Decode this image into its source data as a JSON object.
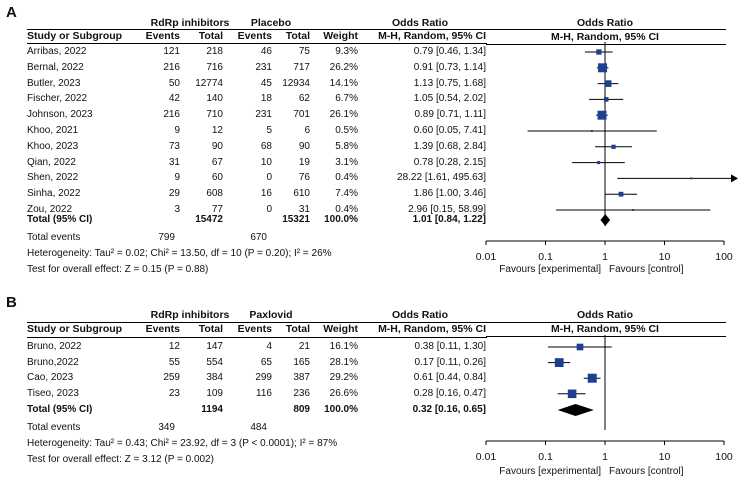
{
  "chart_data": [
    {
      "type": "forest",
      "panel": "A",
      "group1_label": "RdRp inhibitors",
      "group2_label": "Placebo",
      "headers": {
        "study": "Study or Subgroup",
        "events1": "Events",
        "total1": "Total",
        "events2": "Events",
        "total2": "Total",
        "weight": "Weight",
        "or_title": "Odds Ratio",
        "or_method": "M-H, Random, 95% CI",
        "plot_title": "Odds Ratio",
        "plot_method": "M-H, Random, 95% CI"
      },
      "studies": [
        {
          "name": "Arribas, 2022",
          "e1": "121",
          "t1": "218",
          "e2": "46",
          "t2": "75",
          "weight": "9.3%",
          "or_text": "0.79 [0.46, 1.34]",
          "or": 0.79,
          "lo": 0.46,
          "hi": 1.34
        },
        {
          "name": "Bernal, 2022",
          "e1": "216",
          "t1": "716",
          "e2": "231",
          "t2": "717",
          "weight": "26.2%",
          "or_text": "0.91 [0.73, 1.14]",
          "or": 0.91,
          "lo": 0.73,
          "hi": 1.14
        },
        {
          "name": "Butler, 2023",
          "e1": "50",
          "t1": "12774",
          "e2": "45",
          "t2": "12934",
          "weight": "14.1%",
          "or_text": "1.13 [0.75, 1.68]",
          "or": 1.13,
          "lo": 0.75,
          "hi": 1.68
        },
        {
          "name": "Fischer, 2022",
          "e1": "42",
          "t1": "140",
          "e2": "18",
          "t2": "62",
          "weight": "6.7%",
          "or_text": "1.05 [0.54, 2.02]",
          "or": 1.05,
          "lo": 0.54,
          "hi": 2.02
        },
        {
          "name": "Johnson, 2023",
          "e1": "216",
          "t1": "710",
          "e2": "231",
          "t2": "701",
          "weight": "26.1%",
          "or_text": "0.89 [0.71, 1.11]",
          "or": 0.89,
          "lo": 0.71,
          "hi": 1.11
        },
        {
          "name": "Khoo, 2021",
          "e1": "9",
          "t1": "12",
          "e2": "5",
          "t2": "6",
          "weight": "0.5%",
          "or_text": "0.60 [0.05, 7.41]",
          "or": 0.6,
          "lo": 0.05,
          "hi": 7.41
        },
        {
          "name": "Khoo, 2023",
          "e1": "73",
          "t1": "90",
          "e2": "68",
          "t2": "90",
          "weight": "5.8%",
          "or_text": "1.39 [0.68, 2.84]",
          "or": 1.39,
          "lo": 0.68,
          "hi": 2.84
        },
        {
          "name": "Qian, 2022",
          "e1": "31",
          "t1": "67",
          "e2": "10",
          "t2": "19",
          "weight": "3.1%",
          "or_text": "0.78 [0.28, 2.15]",
          "or": 0.78,
          "lo": 0.28,
          "hi": 2.15
        },
        {
          "name": "Shen, 2022",
          "e1": "9",
          "t1": "60",
          "e2": "0",
          "t2": "76",
          "weight": "0.4%",
          "or_text": "28.22 [1.61, 495.63]",
          "or": 28.22,
          "lo": 1.61,
          "hi": 495.63
        },
        {
          "name": "Sinha, 2022",
          "e1": "29",
          "t1": "608",
          "e2": "16",
          "t2": "610",
          "weight": "7.4%",
          "or_text": "1.86 [1.00, 3.46]",
          "or": 1.86,
          "lo": 1.0,
          "hi": 3.46
        },
        {
          "name": "Zou, 2022",
          "e1": "3",
          "t1": "77",
          "e2": "0",
          "t2": "31",
          "weight": "0.4%",
          "or_text": "2.96 [0.15, 58.99]",
          "or": 2.96,
          "lo": 0.15,
          "hi": 58.99
        }
      ],
      "total": {
        "label": "Total (95% CI)",
        "t1": "15472",
        "t2": "15321",
        "weight": "100.0%",
        "or_text": "1.01 [0.84, 1.22]",
        "or": 1.01,
        "lo": 0.84,
        "hi": 1.22
      },
      "total_events": {
        "label": "Total events",
        "e1": "799",
        "e2": "670"
      },
      "heterogeneity": "Heterogeneity: Tau² = 0.02; Chi² = 13.50, df = 10 (P = 0.20); I² = 26%",
      "overall_test": "Test for overall effect: Z = 0.15 (P = 0.88)",
      "axis": {
        "ticks": [
          0.01,
          0.1,
          1,
          10,
          100
        ],
        "tick_labels": [
          "0.01",
          "0.1",
          "1",
          "10",
          "100"
        ],
        "xlim": [
          0.01,
          100
        ]
      },
      "favours_left": "Favours [experimental]",
      "favours_right": "Favours [control]"
    },
    {
      "type": "forest",
      "panel": "B",
      "group1_label": "RdRp inhibitors",
      "group2_label": "Paxlovid",
      "headers": {
        "study": "Study or Subgroup",
        "events1": "Events",
        "total1": "Total",
        "events2": "Events",
        "total2": "Total",
        "weight": "Weight",
        "or_title": "Odds Ratio",
        "or_method": "M-H, Random, 95% CI",
        "plot_title": "Odds Ratio",
        "plot_method": "M-H, Random, 95% CI"
      },
      "studies": [
        {
          "name": "Bruno, 2022",
          "e1": "12",
          "t1": "147",
          "e2": "4",
          "t2": "21",
          "weight": "16.1%",
          "or_text": "0.38 [0.11, 1.30]",
          "or": 0.38,
          "lo": 0.11,
          "hi": 1.3
        },
        {
          "name": "Bruno,2022",
          "e1": "55",
          "t1": "554",
          "e2": "65",
          "t2": "165",
          "weight": "28.1%",
          "or_text": "0.17 [0.11, 0.26]",
          "or": 0.17,
          "lo": 0.11,
          "hi": 0.26
        },
        {
          "name": "Cao, 2023",
          "e1": "259",
          "t1": "384",
          "e2": "299",
          "t2": "387",
          "weight": "29.2%",
          "or_text": "0.61 [0.44, 0.84]",
          "or": 0.61,
          "lo": 0.44,
          "hi": 0.84
        },
        {
          "name": "Tiseo, 2023",
          "e1": "23",
          "t1": "109",
          "e2": "116",
          "t2": "236",
          "weight": "26.6%",
          "or_text": "0.28 [0.16, 0.47]",
          "or": 0.28,
          "lo": 0.16,
          "hi": 0.47
        }
      ],
      "total": {
        "label": "Total (95% CI)",
        "t1": "1194",
        "t2": "809",
        "weight": "100.0%",
        "or_text": "0.32 [0.16, 0.65]",
        "or": 0.32,
        "lo": 0.16,
        "hi": 0.65
      },
      "total_events": {
        "label": "Total events",
        "e1": "349",
        "e2": "484"
      },
      "heterogeneity": "Heterogeneity: Tau² = 0.43; Chi² = 23.92, df = 3 (P < 0.0001); I² = 87%",
      "overall_test": "Test for overall effect: Z = 3.12 (P = 0.002)",
      "axis": {
        "ticks": [
          0.01,
          0.1,
          1,
          10,
          100
        ],
        "tick_labels": [
          "0.01",
          "0.1",
          "1",
          "10",
          "100"
        ],
        "xlim": [
          0.01,
          100
        ]
      },
      "favours_left": "Favours [experimental]",
      "favours_right": "Favours [control]"
    }
  ]
}
